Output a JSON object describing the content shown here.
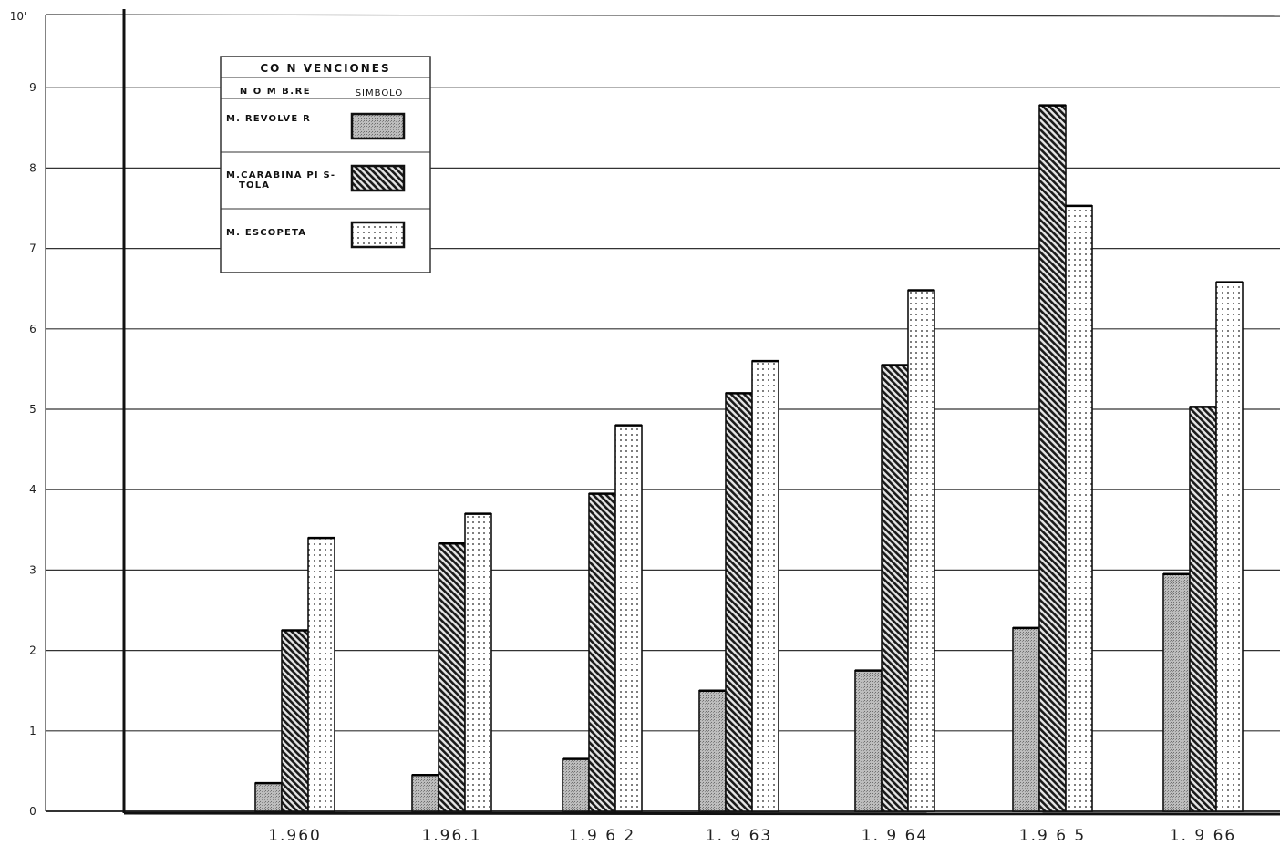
{
  "chart_data": {
    "type": "bar",
    "title": "",
    "xlabel": "",
    "ylabel": "",
    "y_unit_label": "10'",
    "ylim": [
      0,
      10
    ],
    "yticks": [
      0,
      1,
      2,
      3,
      4,
      5,
      6,
      7,
      8,
      9
    ],
    "grid": true,
    "legend_position": "top-left",
    "categories": [
      "1.960",
      "1.96.1",
      "1.9 6 2",
      "1. 9 63",
      "1. 9 64",
      "1.9 6 5",
      "1. 9 66"
    ],
    "series": [
      {
        "name": "M. REVOLVE R",
        "pattern": "fine-gray",
        "values": [
          0.35,
          0.45,
          0.65,
          1.5,
          1.75,
          2.28,
          2.95
        ]
      },
      {
        "name": "M.CARABINA PI S- TOLA",
        "pattern": "diagonal-hatch",
        "values": [
          2.25,
          3.33,
          3.95,
          5.2,
          5.55,
          8.78,
          5.03
        ]
      },
      {
        "name": "M. ESCOPETA",
        "pattern": "dotted",
        "values": [
          3.4,
          3.7,
          4.8,
          5.6,
          6.48,
          7.53,
          6.58
        ]
      }
    ],
    "legend": {
      "title": "CO N VENCIONES",
      "col_name": "N O M B.RE",
      "col_symbol": "SIMBOLO",
      "label_line2": "TOLA"
    }
  }
}
